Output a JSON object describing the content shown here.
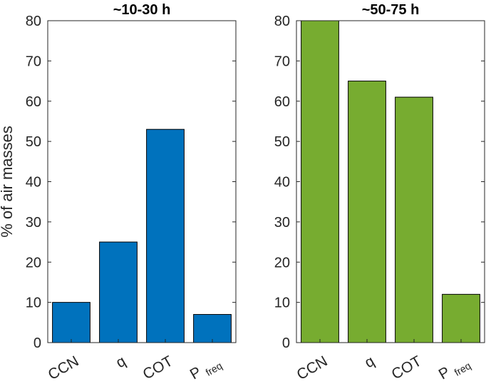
{
  "chart_data": [
    {
      "type": "bar",
      "title": "~10-30 h",
      "ylabel": "% of air masses",
      "xlabel": "",
      "categories": [
        {
          "main": "CCN",
          "sub": ""
        },
        {
          "main": "q",
          "sub": ""
        },
        {
          "main": "COT",
          "sub": ""
        },
        {
          "main": "P",
          "sub": "freq"
        }
      ],
      "values": [
        10,
        25,
        53,
        7
      ],
      "ylim": [
        0,
        80
      ],
      "yticks": [
        0,
        10,
        20,
        30,
        40,
        50,
        60,
        70,
        80
      ],
      "color": "#0072BD",
      "grid": false
    },
    {
      "type": "bar",
      "title": "~50-75 h",
      "ylabel": "",
      "xlabel": "",
      "categories": [
        {
          "main": "CCN",
          "sub": ""
        },
        {
          "main": "q",
          "sub": ""
        },
        {
          "main": "COT",
          "sub": ""
        },
        {
          "main": "P",
          "sub": "freq"
        }
      ],
      "values": [
        80,
        65,
        61,
        12
      ],
      "ylim": [
        0,
        80
      ],
      "yticks": [
        0,
        10,
        20,
        30,
        40,
        50,
        60,
        70,
        80
      ],
      "color": "#77AC30",
      "grid": false
    }
  ]
}
